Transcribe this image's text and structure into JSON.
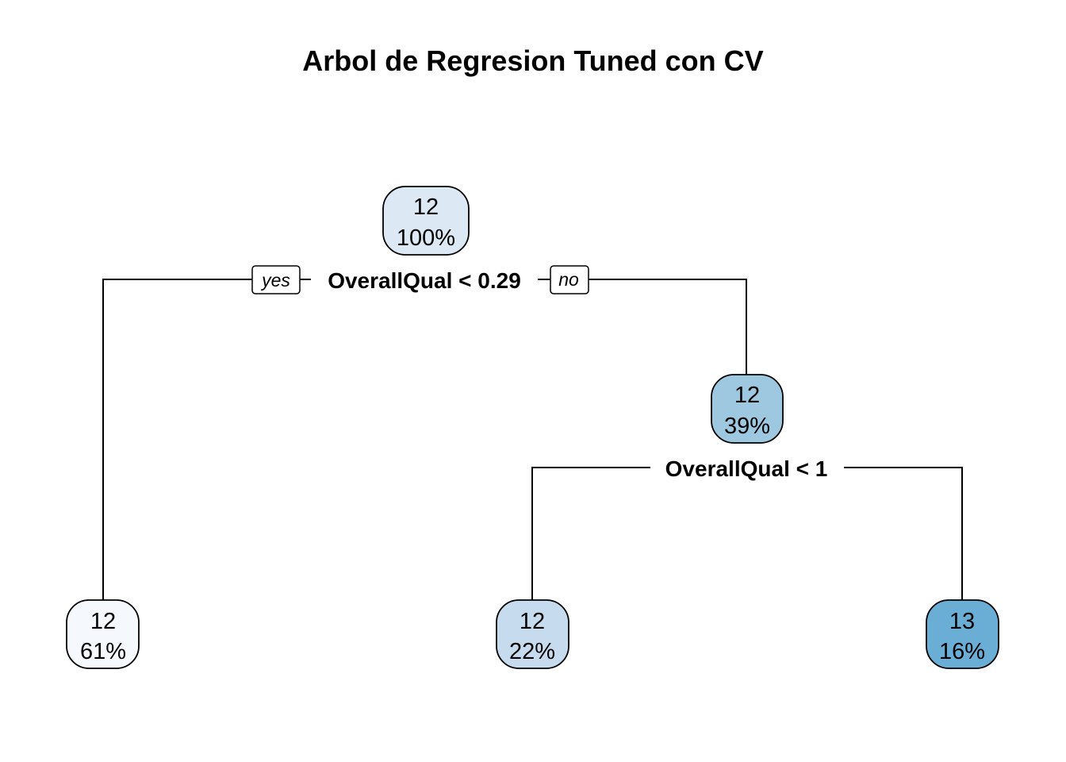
{
  "title": "Arbol de Regresion Tuned con CV",
  "tree": {
    "root": {
      "value": "12",
      "percent": "100%",
      "color": "#dde8f5"
    },
    "split_root": "OverallQual < 0.29",
    "yes_label": "yes",
    "no_label": "no",
    "node_right": {
      "value": "12",
      "percent": "39%",
      "color": "#9dc8e0"
    },
    "split_right": "OverallQual < 1",
    "leaf_1": {
      "value": "12",
      "percent": "61%",
      "color": "#f5f9fd"
    },
    "leaf_2": {
      "value": "12",
      "percent": "22%",
      "color": "#c7dbef"
    },
    "leaf_3": {
      "value": "13",
      "percent": "16%",
      "color": "#6aaed6"
    }
  }
}
